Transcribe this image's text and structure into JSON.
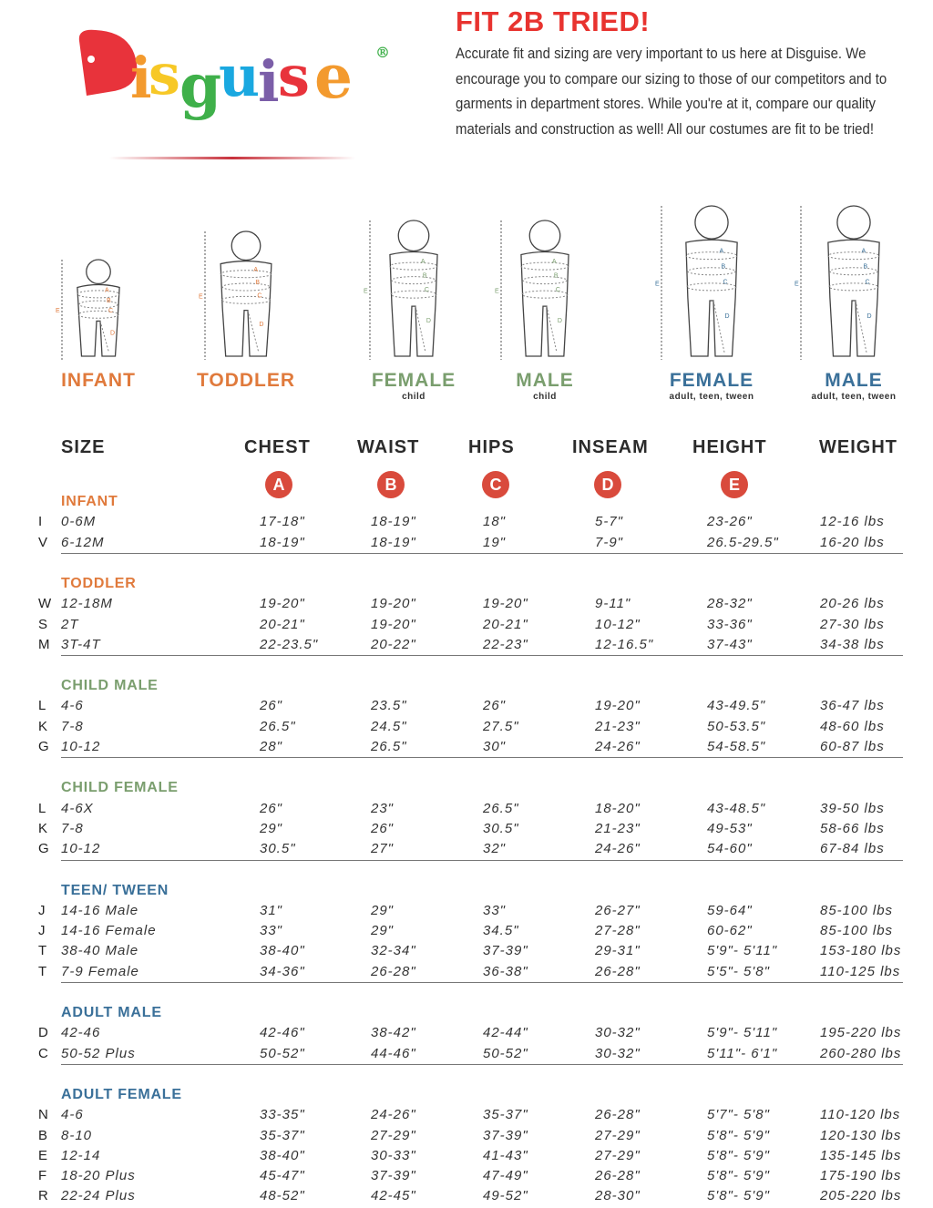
{
  "brand": {
    "logo_text": "Disguise",
    "registered": "®"
  },
  "header": {
    "headline": "FIT 2B TRIED!",
    "intro": "Accurate fit and sizing are very important to us here at Disguise. We encourage you to compare our sizing to those of our competitors and to garments in department stores. While you're at it, compare our quality materials and construction as well! All our costumes are fit to be tried!"
  },
  "figures": [
    {
      "label": "INFANT",
      "sub": "",
      "color": "#e07a3c"
    },
    {
      "label": "TODDLER",
      "sub": "",
      "color": "#e07a3c"
    },
    {
      "label": "FEMALE",
      "sub": "child",
      "color": "#7a9e6e"
    },
    {
      "label": "MALE",
      "sub": "child",
      "color": "#7a9e6e"
    },
    {
      "label": "FEMALE",
      "sub": "adult, teen, tween",
      "color": "#3a7099"
    },
    {
      "label": "MALE",
      "sub": "adult, teen, tween",
      "color": "#3a7099"
    }
  ],
  "columns": {
    "size": "SIZE",
    "chest": {
      "label": "CHEST",
      "badge": "A"
    },
    "waist": {
      "label": "WAIST",
      "badge": "B"
    },
    "hips": {
      "label": "HIPS",
      "badge": "C"
    },
    "inseam": {
      "label": "INSEAM",
      "badge": "D"
    },
    "height": {
      "label": "HEIGHT",
      "badge": "E"
    },
    "weight": {
      "label": "WEIGHT"
    }
  },
  "colors": {
    "orange": "#e07a3c",
    "green": "#7a9e6e",
    "blue": "#3a7099",
    "badge": "#d94a3c",
    "headline": "#e8332f"
  },
  "sections": [
    {
      "title": "INFANT",
      "color": "#e07a3c",
      "rows": [
        [
          "I",
          "0-6M",
          "17-18\"",
          "18-19\"",
          "18\"",
          "5-7\"",
          "23-26\"",
          "12-16 lbs"
        ],
        [
          "V",
          "6-12M",
          "18-19\"",
          "18-19\"",
          "19\"",
          "7-9\"",
          "26.5-29.5\"",
          "16-20 lbs"
        ]
      ]
    },
    {
      "title": "TODDLER",
      "color": "#e07a3c",
      "rows": [
        [
          "W",
          "12-18M",
          "19-20\"",
          "19-20\"",
          "19-20\"",
          "9-11\"",
          "28-32\"",
          "20-26 lbs"
        ],
        [
          "S",
          "2T",
          "20-21\"",
          "19-20\"",
          "20-21\"",
          "10-12\"",
          "33-36\"",
          "27-30 lbs"
        ],
        [
          "M",
          "3T-4T",
          "22-23.5\"",
          "20-22\"",
          "22-23\"",
          "12-16.5\"",
          "37-43\"",
          "34-38 lbs"
        ]
      ]
    },
    {
      "title": "CHILD MALE",
      "color": "#7a9e6e",
      "rows": [
        [
          "L",
          "4-6",
          "26\"",
          "23.5\"",
          "26\"",
          "19-20\"",
          "43-49.5\"",
          "36-47 lbs"
        ],
        [
          "K",
          "7-8",
          "26.5\"",
          "24.5\"",
          "27.5\"",
          "21-23\"",
          "50-53.5\"",
          "48-60 lbs"
        ],
        [
          "G",
          "10-12",
          "28\"",
          "26.5\"",
          "30\"",
          "24-26\"",
          "54-58.5\"",
          "60-87 lbs"
        ]
      ]
    },
    {
      "title": "CHILD FEMALE",
      "color": "#7a9e6e",
      "rows": [
        [
          "L",
          "4-6X",
          "26\"",
          "23\"",
          "26.5\"",
          "18-20\"",
          "43-48.5\"",
          "39-50 lbs"
        ],
        [
          "K",
          "7-8",
          "29\"",
          "26\"",
          "30.5\"",
          "21-23\"",
          "49-53\"",
          "58-66 lbs"
        ],
        [
          "G",
          "10-12",
          "30.5\"",
          "27\"",
          "32\"",
          "24-26\"",
          "54-60\"",
          "67-84 lbs"
        ]
      ]
    },
    {
      "title": "TEEN/ TWEEN",
      "color": "#3a7099",
      "rows": [
        [
          "J",
          "14-16 Male",
          "31\"",
          "29\"",
          "33\"",
          "26-27\"",
          "59-64\"",
          "85-100 lbs"
        ],
        [
          "J",
          "14-16 Female",
          "33\"",
          "29\"",
          "34.5\"",
          "27-28\"",
          "60-62\"",
          "85-100 lbs"
        ],
        [
          "T",
          "38-40 Male",
          "38-40\"",
          "32-34\"",
          "37-39\"",
          "29-31\"",
          "5'9\"- 5'11\"",
          "153-180 lbs"
        ],
        [
          "T",
          "7-9 Female",
          "34-36\"",
          "26-28\"",
          "36-38\"",
          "26-28\"",
          "5'5\"- 5'8\"",
          "110-125 lbs"
        ]
      ]
    },
    {
      "title": "ADULT MALE",
      "color": "#3a7099",
      "rows": [
        [
          "D",
          "42-46",
          "42-46\"",
          "38-42\"",
          "42-44\"",
          "30-32\"",
          "5'9\"- 5'11\"",
          "195-220 lbs"
        ],
        [
          "C",
          "50-52 Plus",
          "50-52\"",
          "44-46\"",
          "50-52\"",
          "30-32\"",
          "5'11\"- 6'1\"",
          "260-280 lbs"
        ]
      ]
    },
    {
      "title": "ADULT FEMALE",
      "color": "#3a7099",
      "rows": [
        [
          "N",
          "4-6",
          "33-35\"",
          "24-26\"",
          "35-37\"",
          "26-28\"",
          "5'7\"- 5'8\"",
          "110-120 lbs"
        ],
        [
          "B",
          "8-10",
          "35-37\"",
          "27-29\"",
          "37-39\"",
          "27-29\"",
          "5'8\"- 5'9\"",
          "120-130 lbs"
        ],
        [
          "E",
          "12-14",
          "38-40\"",
          "30-33\"",
          "41-43\"",
          "27-29\"",
          "5'8\"- 5'9\"",
          "135-145 lbs"
        ],
        [
          "F",
          "18-20 Plus",
          "45-47\"",
          "37-39\"",
          "47-49\"",
          "26-28\"",
          "5'8\"- 5'9\"",
          "175-190 lbs"
        ],
        [
          "R",
          "22-24 Plus",
          "48-52\"",
          "42-45\"",
          "49-52\"",
          "28-30\"",
          "5'8\"- 5'9\"",
          "205-220 lbs"
        ]
      ]
    }
  ]
}
